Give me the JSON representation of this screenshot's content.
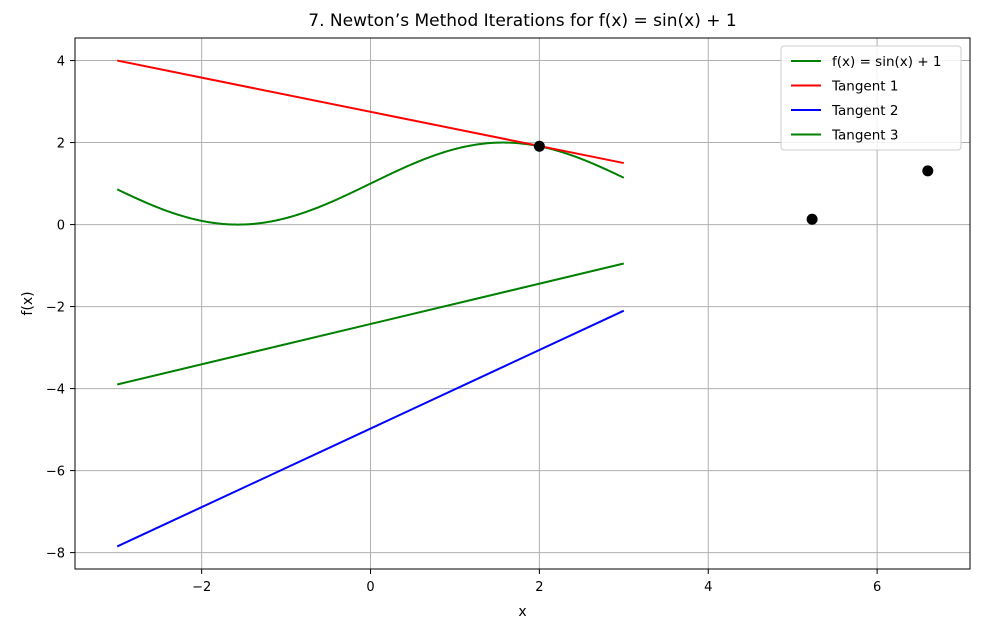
{
  "chart_data": {
    "type": "line",
    "title": "7. Newton’s Method Iterations for f(x) = sin(x) + 1",
    "xlabel": "x",
    "ylabel": "f(x)",
    "xlim": [
      -3.5,
      7.1
    ],
    "ylim": [
      -8.4,
      4.55
    ],
    "xticks": [
      -2,
      0,
      2,
      4,
      6
    ],
    "yticks": [
      -8,
      -6,
      -4,
      -2,
      0,
      2,
      4
    ],
    "xtick_labels": [
      "−2",
      "0",
      "2",
      "4",
      "6"
    ],
    "ytick_labels": [
      "−8",
      "−6",
      "−4",
      "−2",
      "0",
      "2",
      "4"
    ],
    "grid": true,
    "legend_position": "top-right",
    "series": [
      {
        "name": "f(x) = sin(x) + 1",
        "color": "#008000",
        "kind": "function",
        "function": "sin(x)+1",
        "x_range": [
          -3,
          3
        ]
      },
      {
        "name": "Tangent 1",
        "color": "#ff0000",
        "kind": "line",
        "x": [
          -3,
          3
        ],
        "y": [
          4.0,
          1.5
        ]
      },
      {
        "name": "Tangent 2",
        "color": "#0000ff",
        "kind": "line",
        "x": [
          -3,
          3
        ],
        "y": [
          -7.85,
          -2.1
        ]
      },
      {
        "name": "Tangent 3",
        "color": "#008000",
        "kind": "line",
        "x": [
          -3,
          3
        ],
        "y": [
          -3.9,
          -0.95
        ]
      }
    ],
    "points": [
      {
        "x": 2.0,
        "y": 1.91
      },
      {
        "x": 5.23,
        "y": 0.13
      },
      {
        "x": 6.6,
        "y": 1.31
      }
    ],
    "point_color": "#000000"
  }
}
